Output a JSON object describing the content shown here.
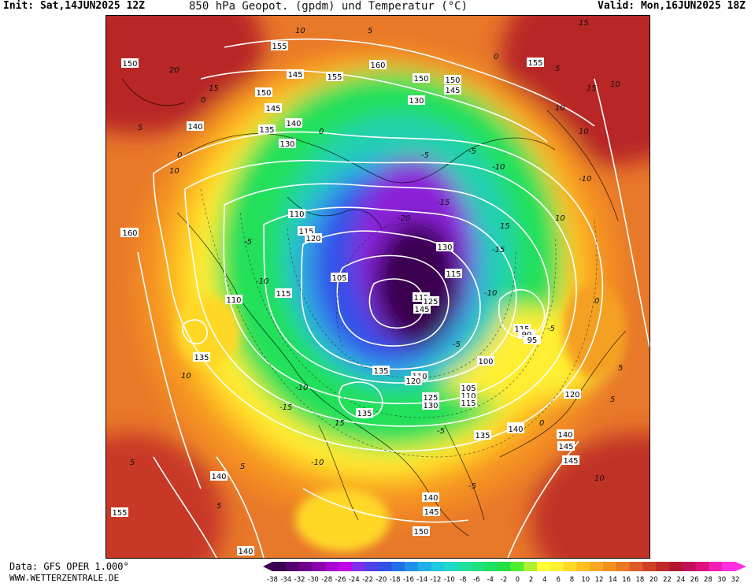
{
  "header": {
    "init_label": "Init: Sat,14JUN2025 12Z",
    "title": "850 hPa Geopot. (gpdm) und Temperatur (°C)",
    "valid_label": "Valid: Mon,16JUN2025 18Z"
  },
  "footer": {
    "source": "Data: GFS OPER 1.000°",
    "website": "WWW.WETTERZENTRALE.DE"
  },
  "colors": {
    "deep_purple": "#3a0050",
    "purple": "#8a20d8",
    "blue": "#3050e8",
    "cyan": "#30c8e0",
    "green": "#22e05a",
    "yellow": "#ffee33",
    "orange": "#f49020",
    "red_orange": "#e05a2a",
    "red": "#b82828"
  },
  "legend": {
    "ticks": [
      "-38",
      "-34",
      "-32",
      "-30",
      "-28",
      "-26",
      "-24",
      "-22",
      "-20",
      "-18",
      "-16",
      "-14",
      "-12",
      "-10",
      "-8",
      "-6",
      "-4",
      "-2",
      "0",
      "2",
      "4",
      "6",
      "8",
      "10",
      "12",
      "14",
      "16",
      "18",
      "20",
      "22",
      "24",
      "26",
      "28",
      "30",
      "32"
    ],
    "colors": [
      "#3a0050",
      "#55006e",
      "#70008a",
      "#8a00aa",
      "#a800d0",
      "#c000e8",
      "#8030e8",
      "#5040e8",
      "#3050e8",
      "#2070e8",
      "#2090e8",
      "#20b0e8",
      "#20c8e0",
      "#20d8c8",
      "#20e0a0",
      "#20e080",
      "#20e060",
      "#22e045",
      "#50ec30",
      "#b0f030",
      "#ffff33",
      "#fff030",
      "#ffd828",
      "#ffc020",
      "#f8a820",
      "#f49020",
      "#ec7822",
      "#e05a2a",
      "#d04028",
      "#c02828",
      "#b01830",
      "#c0105a",
      "#e0107a",
      "#f020b0",
      "#ff30e0"
    ]
  },
  "height_labels": [
    "150",
    "155",
    "160",
    "150",
    "145",
    "140",
    "135",
    "140",
    "145",
    "150",
    "130",
    "130",
    "160",
    "115",
    "110",
    "120",
    "115",
    "110",
    "105",
    "130",
    "115",
    "115",
    "125",
    "145",
    "135",
    "110",
    "120",
    "125",
    "130",
    "135",
    "115",
    "90",
    "95",
    "100",
    "105",
    "110",
    "115",
    "120",
    "135",
    "140",
    "145",
    "150",
    "140",
    "135",
    "155",
    "140",
    "145",
    "150",
    "140",
    "145",
    "150",
    "155",
    "140",
    "145",
    "160",
    "155"
  ],
  "temp_labels": [
    "10",
    "5",
    "0",
    "5",
    "10",
    "15",
    "20",
    "15",
    "10",
    "5",
    "0",
    "-5",
    "-10",
    "-5",
    "-10",
    "-15",
    "-20",
    "-15",
    "-10",
    "-5",
    "0",
    "5",
    "10",
    "15",
    "10",
    "5",
    "-5",
    "-10",
    "-15",
    "-10",
    "-5",
    "0",
    "5",
    "10",
    "15",
    "10",
    "5",
    "0",
    "-5",
    "-10",
    "-5",
    "0",
    "5",
    "10",
    "15"
  ]
}
